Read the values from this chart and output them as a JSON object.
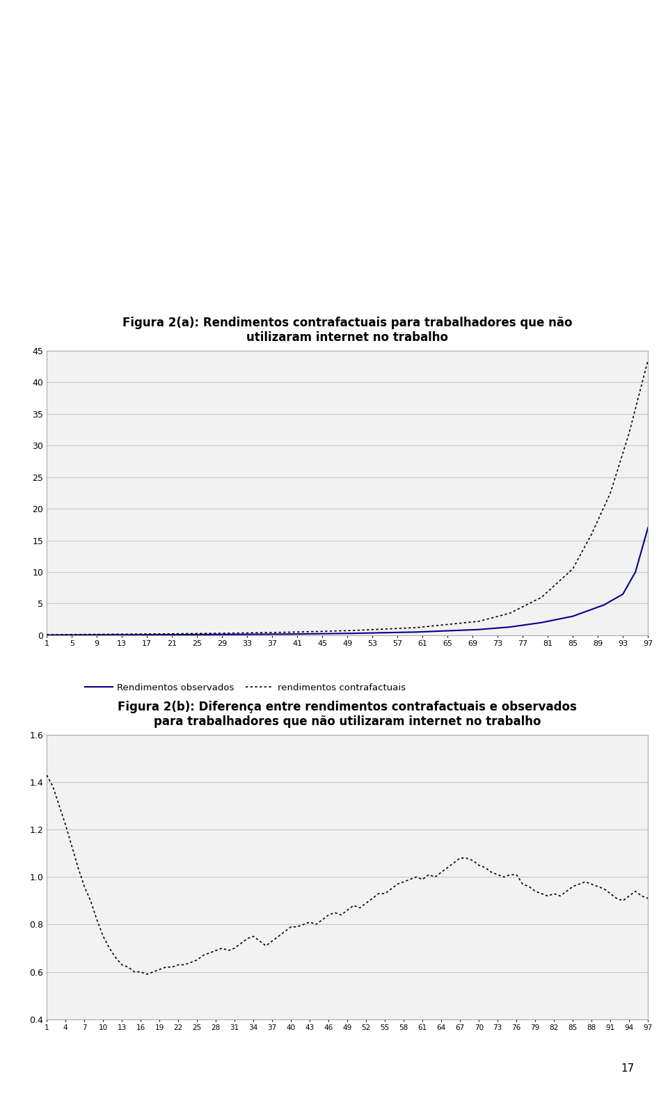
{
  "title1": "Figura 2(a): Rendimentos contrafactuais para trabalhadores que não\nutilizaram internet no trabalho",
  "title2": "Figura 2(b): Diferença entre rendimentos contrafactuais e observados\npara trabalhadores que não utilizaram internet no trabalho",
  "chart1": {
    "xticks": [
      1,
      5,
      9,
      13,
      17,
      21,
      25,
      29,
      33,
      37,
      41,
      45,
      49,
      53,
      57,
      61,
      65,
      69,
      73,
      77,
      81,
      85,
      89,
      93,
      97
    ],
    "ylim": [
      0,
      45
    ],
    "yticks": [
      0,
      5,
      10,
      15,
      20,
      25,
      30,
      35,
      40,
      45
    ],
    "obs_x": [
      1,
      10,
      20,
      30,
      40,
      50,
      60,
      70,
      75,
      80,
      85,
      90,
      93,
      95,
      97
    ],
    "obs_y": [
      0.02,
      0.05,
      0.08,
      0.12,
      0.18,
      0.3,
      0.5,
      0.9,
      1.3,
      2.0,
      3.0,
      4.8,
      6.5,
      10.0,
      17.0
    ],
    "cf_x": [
      1,
      10,
      20,
      30,
      40,
      50,
      60,
      70,
      75,
      80,
      85,
      88,
      91,
      94,
      97
    ],
    "cf_y": [
      0.08,
      0.15,
      0.22,
      0.32,
      0.48,
      0.75,
      1.2,
      2.2,
      3.5,
      6.0,
      10.5,
      16.0,
      22.5,
      32.0,
      43.5
    ],
    "legend_observed": "Rendimentos observados",
    "legend_counterfactual": "rendimentos contrafactuais",
    "observed_color": "#00008B",
    "counterfactual_color": "#000000",
    "grid_color": "#C8C8C8",
    "bg_color": "#F2F2F2"
  },
  "chart2": {
    "xticks": [
      1,
      4,
      7,
      10,
      13,
      16,
      19,
      22,
      25,
      28,
      31,
      34,
      37,
      40,
      43,
      46,
      49,
      52,
      55,
      58,
      61,
      64,
      67,
      70,
      73,
      76,
      79,
      82,
      85,
      88,
      91,
      94,
      97
    ],
    "ylim": [
      0.4,
      1.6
    ],
    "yticks": [
      0.4,
      0.6,
      0.8,
      1.0,
      1.2,
      1.4,
      1.6
    ],
    "diff": [
      1.43,
      1.38,
      1.3,
      1.22,
      1.13,
      1.04,
      0.96,
      0.9,
      0.82,
      0.75,
      0.7,
      0.66,
      0.63,
      0.62,
      0.6,
      0.6,
      0.59,
      0.6,
      0.61,
      0.62,
      0.62,
      0.63,
      0.63,
      0.64,
      0.65,
      0.67,
      0.68,
      0.69,
      0.7,
      0.69,
      0.7,
      0.72,
      0.74,
      0.75,
      0.73,
      0.71,
      0.73,
      0.75,
      0.77,
      0.79,
      0.79,
      0.8,
      0.81,
      0.8,
      0.82,
      0.84,
      0.85,
      0.84,
      0.86,
      0.88,
      0.87,
      0.89,
      0.91,
      0.93,
      0.93,
      0.95,
      0.97,
      0.98,
      0.99,
      1.0,
      0.99,
      1.01,
      1.0,
      1.02,
      1.04,
      1.06,
      1.08,
      1.08,
      1.07,
      1.05,
      1.04,
      1.02,
      1.01,
      1.0,
      1.01,
      1.01,
      0.97,
      0.96,
      0.94,
      0.93,
      0.92,
      0.93,
      0.92,
      0.94,
      0.96,
      0.97,
      0.98,
      0.97,
      0.96,
      0.95,
      0.93,
      0.91,
      0.9,
      0.92,
      0.94,
      0.92,
      0.91
    ],
    "diff_color": "#000000",
    "grid_color": "#C8C8C8",
    "bg_color": "#F2F2F2"
  },
  "page_number": "17",
  "figure_bg": "#FFFFFF",
  "border_color": "#AAAAAA"
}
